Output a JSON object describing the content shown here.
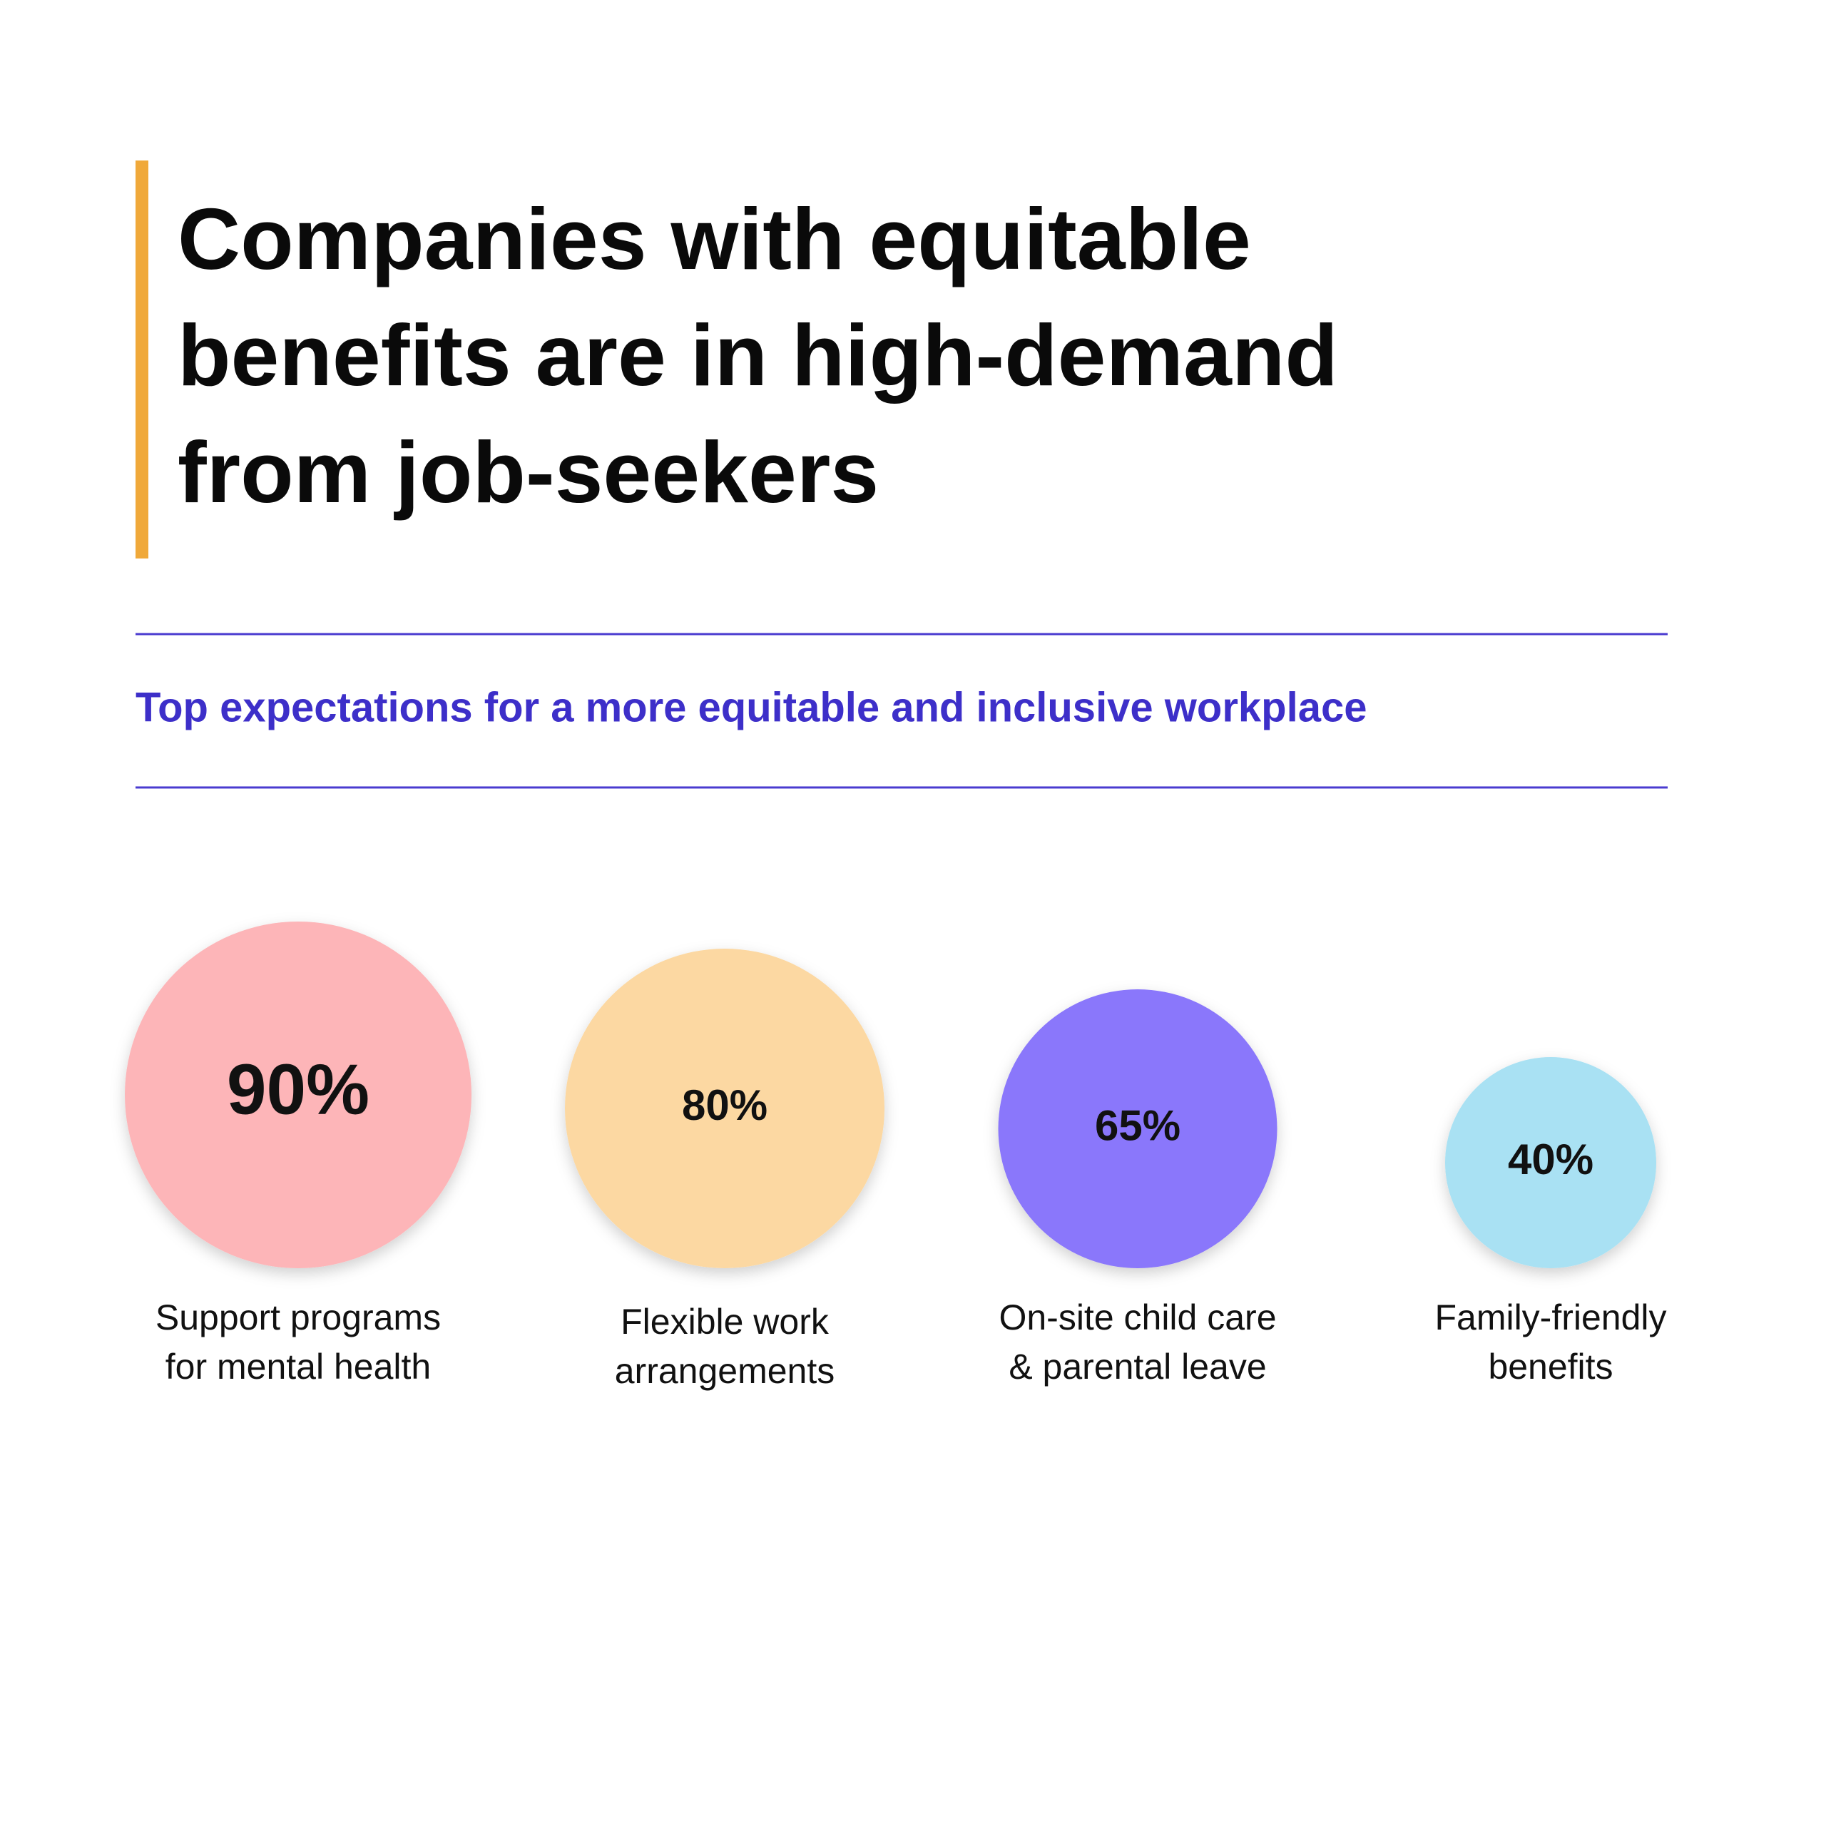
{
  "chart_data": {
    "type": "bubble",
    "title": [
      "Companies with equitable",
      "benefits are in high-demand",
      "from job-seekers"
    ],
    "subtitle": "Top expectations for a more equitable and inclusive workplace",
    "categories": [
      [
        "Support programs",
        "for mental health"
      ],
      [
        "Flexible work",
        "arrangements"
      ],
      [
        "On-site child care",
        "& parental leave"
      ],
      [
        "Family-friendly",
        "benefits"
      ]
    ],
    "values": [
      90,
      80,
      65,
      40
    ],
    "value_labels": [
      "90%",
      "80%",
      "65%",
      "40%"
    ],
    "colors": [
      "#fdb5b8",
      "#fcd8a2",
      "#8a77fb",
      "#a9e1f3"
    ]
  }
}
